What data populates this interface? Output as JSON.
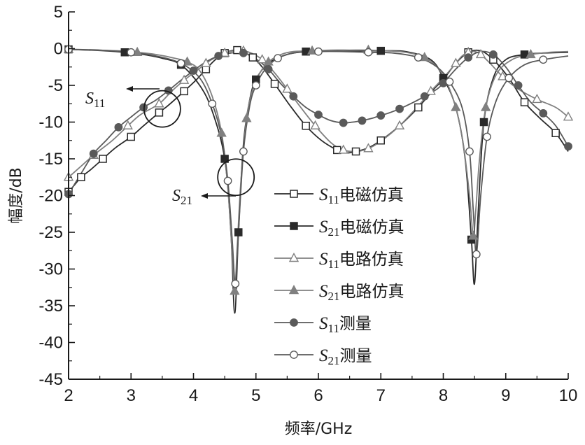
{
  "chart_data": {
    "type": "line",
    "xlabel": "频率/GHz",
    "ylabel": "幅度/dB",
    "xlim": [
      2,
      10
    ],
    "ylim": [
      -45,
      5
    ],
    "xticks": [
      2,
      3,
      4,
      5,
      6,
      7,
      8,
      9,
      10
    ],
    "yticks": [
      5,
      0,
      -5,
      -10,
      -15,
      -20,
      -25,
      -30,
      -35,
      -40,
      -45
    ],
    "grid": false,
    "legend_position": "center-right",
    "annotations": [
      {
        "text_main": "S",
        "text_sub": "11",
        "target_x": 3.5,
        "target_y": -8.2
      },
      {
        "text_main": "S",
        "text_sub": "21",
        "target_x": 4.68,
        "target_y": -17.5
      }
    ],
    "series": [
      {
        "name_main": "S",
        "name_sub": "11",
        "name_suffix": "电磁仿真",
        "marker": "square-open",
        "color": "#2a2a2a",
        "x": [
          2.0,
          2.1,
          2.2,
          2.35,
          2.55,
          2.75,
          3.0,
          3.2,
          3.45,
          3.6,
          3.85,
          4.05,
          4.2,
          4.35,
          4.5,
          4.6,
          4.7,
          4.8,
          4.95,
          5.1,
          5.3,
          5.55,
          5.8,
          6.05,
          6.3,
          6.45,
          6.6,
          6.8,
          7.0,
          7.3,
          7.6,
          7.85,
          8.0,
          8.2,
          8.4,
          8.6,
          8.8,
          9.05,
          9.3,
          9.55,
          9.8,
          10.0
        ],
        "y": [
          -19.5,
          -18.5,
          -17.5,
          -16.5,
          -15.0,
          -13.5,
          -12.0,
          -10.5,
          -8.7,
          -7.7,
          -5.8,
          -4.2,
          -2.8,
          -1.5,
          -0.6,
          -0.3,
          -0.2,
          -0.5,
          -1.2,
          -2.5,
          -4.8,
          -7.8,
          -10.5,
          -12.5,
          -13.8,
          -14.2,
          -14.0,
          -13.5,
          -12.5,
          -10.5,
          -8.0,
          -5.5,
          -4.2,
          -2.0,
          -0.5,
          -0.3,
          -1.5,
          -4.0,
          -7.3,
          -9.5,
          -11.5,
          -14.0
        ]
      },
      {
        "name_main": "S",
        "name_sub": "21",
        "name_suffix": "电磁仿真",
        "marker": "square-filled",
        "color": "#2a2a2a",
        "x": [
          2.0,
          2.3,
          2.6,
          2.9,
          3.2,
          3.5,
          3.8,
          4.1,
          4.3,
          4.5,
          4.6,
          4.66,
          4.72,
          4.8,
          4.9,
          5.0,
          5.2,
          5.5,
          5.8,
          6.2,
          6.6,
          7.0,
          7.4,
          7.8,
          8.0,
          8.2,
          8.35,
          8.45,
          8.5,
          8.56,
          8.65,
          8.8,
          9.0,
          9.3,
          9.6,
          10.0
        ],
        "y": [
          -0.1,
          -0.2,
          -0.3,
          -0.5,
          -0.8,
          -1.3,
          -2.2,
          -5.0,
          -8.5,
          -15.0,
          -25.0,
          -36.0,
          -25.0,
          -13.0,
          -7.0,
          -4.2,
          -2.0,
          -0.8,
          -0.4,
          -0.3,
          -0.3,
          -0.3,
          -0.4,
          -1.5,
          -4.0,
          -8.0,
          -15.0,
          -26.0,
          -32.0,
          -22.0,
          -10.0,
          -4.0,
          -1.5,
          -0.8,
          -0.6,
          -0.5
        ]
      },
      {
        "name_main": "S",
        "name_sub": "11",
        "name_suffix": "电路仿真",
        "marker": "triangle-open",
        "color": "#808080",
        "x": [
          2.0,
          2.2,
          2.4,
          2.7,
          2.95,
          3.15,
          3.45,
          3.65,
          3.85,
          4.05,
          4.2,
          4.35,
          4.5,
          4.65,
          4.8,
          4.95,
          5.1,
          5.3,
          5.5,
          5.7,
          5.95,
          6.2,
          6.4,
          6.6,
          6.8,
          7.0,
          7.3,
          7.6,
          7.8,
          8.0,
          8.2,
          8.3,
          8.4,
          8.5,
          8.6,
          8.75,
          8.95,
          9.2,
          9.5,
          9.8,
          10.0
        ],
        "y": [
          -17.5,
          -16.0,
          -14.5,
          -12.5,
          -10.5,
          -9.0,
          -7.5,
          -5.8,
          -4.3,
          -3.0,
          -2.0,
          -1.2,
          -0.6,
          -0.3,
          -0.3,
          -0.7,
          -1.5,
          -3.3,
          -5.5,
          -7.8,
          -10.5,
          -12.8,
          -13.8,
          -14.0,
          -13.6,
          -12.6,
          -10.5,
          -7.8,
          -5.8,
          -4.0,
          -2.0,
          -1.0,
          -0.5,
          -0.4,
          -0.8,
          -2.0,
          -3.8,
          -5.5,
          -6.9,
          -8.0,
          -9.3
        ]
      },
      {
        "name_main": "S",
        "name_sub": "21",
        "name_suffix": "电路仿真",
        "marker": "triangle-filled",
        "color": "#808080",
        "x": [
          2.0,
          2.4,
          2.8,
          3.1,
          3.4,
          3.7,
          3.9,
          4.1,
          4.3,
          4.45,
          4.55,
          4.62,
          4.66,
          4.7,
          4.76,
          4.85,
          4.95,
          5.05,
          5.2,
          5.4,
          5.6,
          5.9,
          6.2,
          6.5,
          6.8,
          7.1,
          7.4,
          7.7,
          7.9,
          8.05,
          8.2,
          8.32,
          8.42,
          8.48,
          8.52,
          8.58,
          8.68,
          8.85,
          9.1,
          9.4,
          9.7,
          10.0
        ],
        "y": [
          -0.1,
          -0.2,
          -0.3,
          -0.5,
          -0.8,
          -1.3,
          -1.8,
          -3.0,
          -6.5,
          -11.5,
          -19.0,
          -28.0,
          -33.0,
          -27.0,
          -18.0,
          -9.5,
          -5.5,
          -3.5,
          -1.8,
          -0.8,
          -0.4,
          -0.3,
          -0.2,
          -0.2,
          -0.2,
          -0.3,
          -0.5,
          -1.2,
          -2.5,
          -4.5,
          -8.0,
          -13.0,
          -20.0,
          -25.5,
          -22.0,
          -15.0,
          -8.0,
          -3.5,
          -1.5,
          -0.8,
          -0.5,
          -0.4
        ]
      },
      {
        "name_main": "S",
        "name_sub": "11",
        "name_suffix": "测量",
        "marker": "circle-filled",
        "color": "#5a5a5a",
        "x": [
          2.0,
          2.2,
          2.4,
          2.6,
          2.8,
          3.0,
          3.2,
          3.4,
          3.6,
          3.8,
          4.0,
          4.2,
          4.4,
          4.6,
          4.8,
          5.0,
          5.2,
          5.4,
          5.6,
          5.8,
          6.0,
          6.2,
          6.4,
          6.55,
          6.7,
          6.85,
          7.0,
          7.15,
          7.3,
          7.5,
          7.7,
          7.9,
          8.0,
          8.2,
          8.4,
          8.6,
          8.8,
          9.0,
          9.2,
          9.4,
          9.6,
          9.8,
          10.0
        ],
        "y": [
          -19.8,
          -17.0,
          -14.3,
          -12.5,
          -10.7,
          -9.3,
          -8.0,
          -7.0,
          -5.7,
          -4.3,
          -3.0,
          -1.8,
          -1.0,
          -0.6,
          -0.6,
          -1.4,
          -2.8,
          -4.8,
          -6.5,
          -8.0,
          -9.0,
          -9.8,
          -10.1,
          -10.0,
          -9.8,
          -9.5,
          -9.1,
          -8.7,
          -8.2,
          -7.4,
          -6.5,
          -5.5,
          -4.7,
          -2.8,
          -1.2,
          -0.4,
          -0.8,
          -2.5,
          -5.0,
          -7.3,
          -8.8,
          -10.5,
          -13.3
        ]
      },
      {
        "name_main": "S",
        "name_sub": "21",
        "name_suffix": "测量",
        "marker": "circle-open",
        "color": "#5a5a5a",
        "x": [
          2.0,
          2.5,
          3.0,
          3.4,
          3.8,
          4.1,
          4.3,
          4.45,
          4.55,
          4.62,
          4.67,
          4.72,
          4.8,
          4.9,
          5.0,
          5.15,
          5.35,
          5.6,
          6.0,
          6.4,
          6.8,
          7.2,
          7.6,
          7.9,
          8.1,
          8.3,
          8.42,
          8.48,
          8.53,
          8.6,
          8.7,
          8.85,
          9.05,
          9.3,
          9.6,
          10.0
        ],
        "y": [
          -0.1,
          -0.2,
          -0.5,
          -1.0,
          -2.0,
          -4.0,
          -7.5,
          -12.0,
          -18.0,
          -26.0,
          -32.0,
          -25.0,
          -14.0,
          -7.8,
          -5.0,
          -2.8,
          -1.3,
          -0.6,
          -0.4,
          -0.4,
          -0.5,
          -0.6,
          -1.2,
          -2.5,
          -4.5,
          -8.0,
          -14.0,
          -22.0,
          -28.0,
          -20.0,
          -12.0,
          -7.0,
          -4.0,
          -2.2,
          -1.5,
          -1.0
        ]
      }
    ]
  }
}
